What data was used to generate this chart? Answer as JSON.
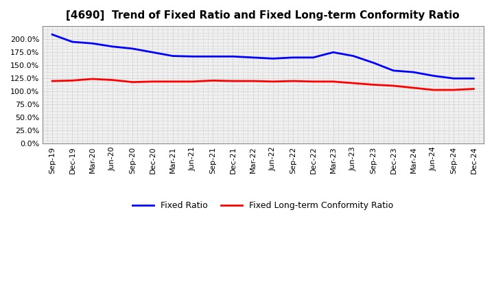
{
  "title": "[4690]  Trend of Fixed Ratio and Fixed Long-term Conformity Ratio",
  "x_labels": [
    "Sep-19",
    "Dec-19",
    "Mar-20",
    "Jun-20",
    "Sep-20",
    "Dec-20",
    "Mar-21",
    "Jun-21",
    "Sep-21",
    "Dec-21",
    "Mar-22",
    "Jun-22",
    "Sep-22",
    "Dec-22",
    "Mar-23",
    "Jun-23",
    "Sep-23",
    "Dec-23",
    "Mar-24",
    "Jun-24",
    "Sep-24",
    "Dec-24"
  ],
  "fixed_ratio": [
    2.09,
    1.95,
    1.92,
    1.86,
    1.82,
    1.75,
    1.68,
    1.67,
    1.67,
    1.67,
    1.65,
    1.63,
    1.65,
    1.65,
    1.75,
    1.68,
    1.55,
    1.4,
    1.37,
    1.3,
    1.25,
    1.25
  ],
  "fixed_lt_ratio": [
    1.2,
    1.21,
    1.24,
    1.22,
    1.18,
    1.19,
    1.19,
    1.19,
    1.21,
    1.2,
    1.2,
    1.19,
    1.2,
    1.19,
    1.19,
    1.16,
    1.13,
    1.11,
    1.07,
    1.03,
    1.03,
    1.05
  ],
  "fixed_ratio_color": "#0000FF",
  "fixed_lt_ratio_color": "#FF0000",
  "background_color": "#FFFFFF",
  "plot_bg_color": "#F0F0F0",
  "ylim": [
    0.0,
    2.25
  ],
  "yticks": [
    0.0,
    0.25,
    0.5,
    0.75,
    1.0,
    1.25,
    1.5,
    1.75,
    2.0
  ],
  "ytick_labels": [
    "0.0%",
    "25.0%",
    "50.0%",
    "75.0%",
    "100.0%",
    "125.0%",
    "150.0%",
    "175.0%",
    "200.0%"
  ],
  "line_width": 2.0,
  "legend_fixed_ratio": "Fixed Ratio",
  "legend_fixed_lt_ratio": "Fixed Long-term Conformity Ratio",
  "title_fontsize": 11,
  "tick_fontsize": 8,
  "legend_fontsize": 9
}
